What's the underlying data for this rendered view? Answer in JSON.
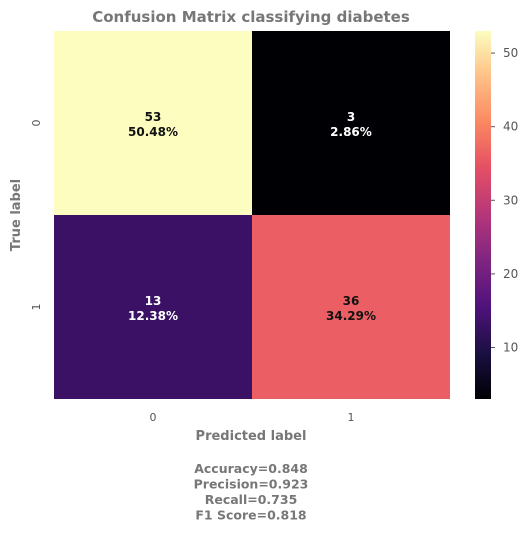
{
  "chart_data": {
    "type": "heatmap",
    "title": "Confusion Matrix classifying diabetes",
    "xlabel": "Predicted label",
    "ylabel": "True label",
    "x_categories": [
      "0",
      "1"
    ],
    "y_categories": [
      "0",
      "1"
    ],
    "values": [
      [
        53,
        3
      ],
      [
        13,
        36
      ]
    ],
    "cell_labels": [
      [
        {
          "count": "53",
          "percent": "50.48%"
        },
        {
          "count": "3",
          "percent": "2.86%"
        }
      ],
      [
        {
          "count": "13",
          "percent": "12.38%"
        },
        {
          "count": "36",
          "percent": "34.29%"
        }
      ]
    ],
    "colormap": "magma",
    "colorbar": {
      "range": [
        3,
        53
      ],
      "ticks": [
        "10",
        "20",
        "30",
        "40",
        "50"
      ],
      "tick_values": [
        10,
        20,
        30,
        40,
        50
      ]
    },
    "metrics": [
      "Accuracy=0.848",
      "Precision=0.923",
      "Recall=0.735",
      "F1 Score=0.818"
    ]
  }
}
